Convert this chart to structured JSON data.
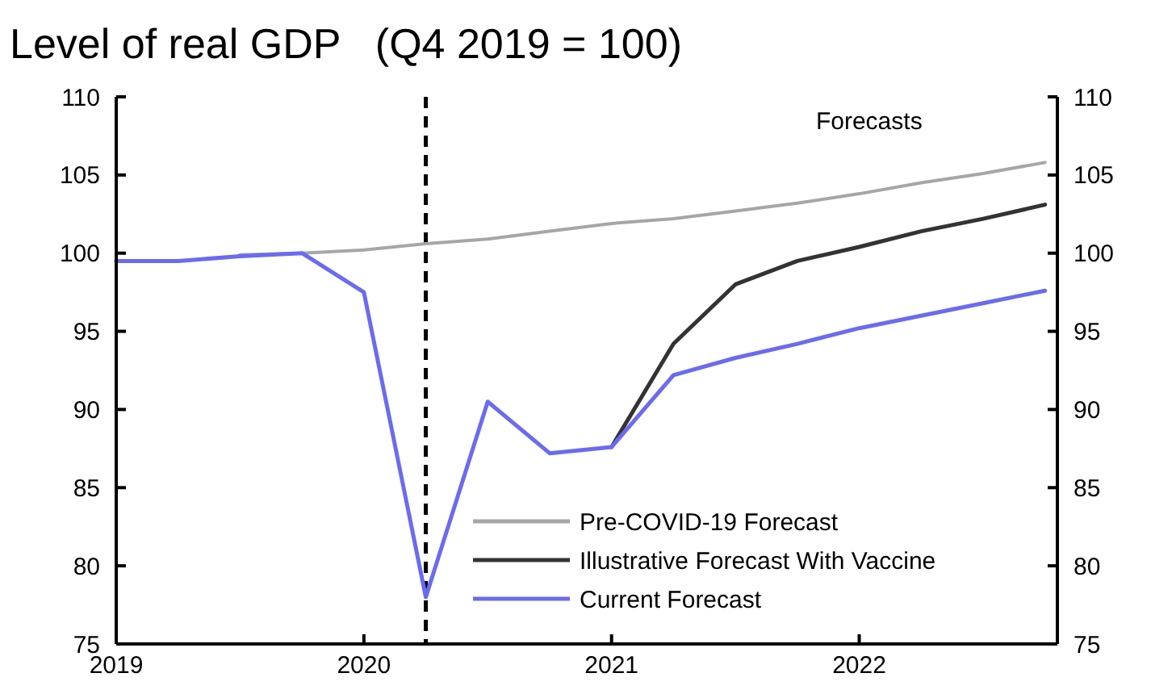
{
  "chart_data": {
    "type": "line",
    "title": "Level of real GDP   (Q4 2019 = 100)",
    "x": [
      2019,
      2019.25,
      2019.5,
      2019.75,
      2020,
      2020.25,
      2020.5,
      2020.75,
      2021,
      2021.25,
      2021.5,
      2021.75,
      2022,
      2022.25,
      2022.5,
      2022.75
    ],
    "series": [
      {
        "name": "Pre-COVID-19 Forecast",
        "color": "#a6a6a6",
        "values": [
          null,
          null,
          99.9,
          100,
          100.2,
          100.6,
          100.9,
          101.4,
          101.9,
          102.2,
          102.7,
          103.2,
          103.8,
          104.5,
          105.1,
          105.8
        ]
      },
      {
        "name": "Illustrative Forecast With Vaccine",
        "color": "#333333",
        "values": [
          null,
          null,
          null,
          null,
          null,
          null,
          null,
          null,
          87.6,
          94.2,
          98,
          99.5,
          100.4,
          101.4,
          102.2,
          103.1
        ]
      },
      {
        "name": "Current Forecast",
        "color": "#6b6bf0",
        "values": [
          99.5,
          99.5,
          99.8,
          100,
          97.5,
          78,
          90.5,
          87.2,
          87.6,
          92.2,
          93.3,
          94.2,
          95.2,
          96,
          96.8,
          97.6
        ]
      }
    ],
    "xlim": [
      2019,
      2022.8
    ],
    "xticks": [
      2019,
      2020,
      2021,
      2022
    ],
    "ylim": [
      75,
      110
    ],
    "yticks": [
      75,
      80,
      85,
      90,
      95,
      100,
      105,
      110
    ],
    "y2lim": [
      75,
      110
    ],
    "y2ticks": [
      75,
      80,
      85,
      90,
      95,
      100,
      105,
      110
    ],
    "ref_lines": [
      {
        "axis": "x",
        "value": 2020.25,
        "color": "#000000",
        "line_style": "dashed"
      }
    ],
    "annotations": [
      "Forecasts"
    ],
    "legend": "bottom right",
    "grid": false,
    "marker": "none",
    "line_style": "solid"
  }
}
